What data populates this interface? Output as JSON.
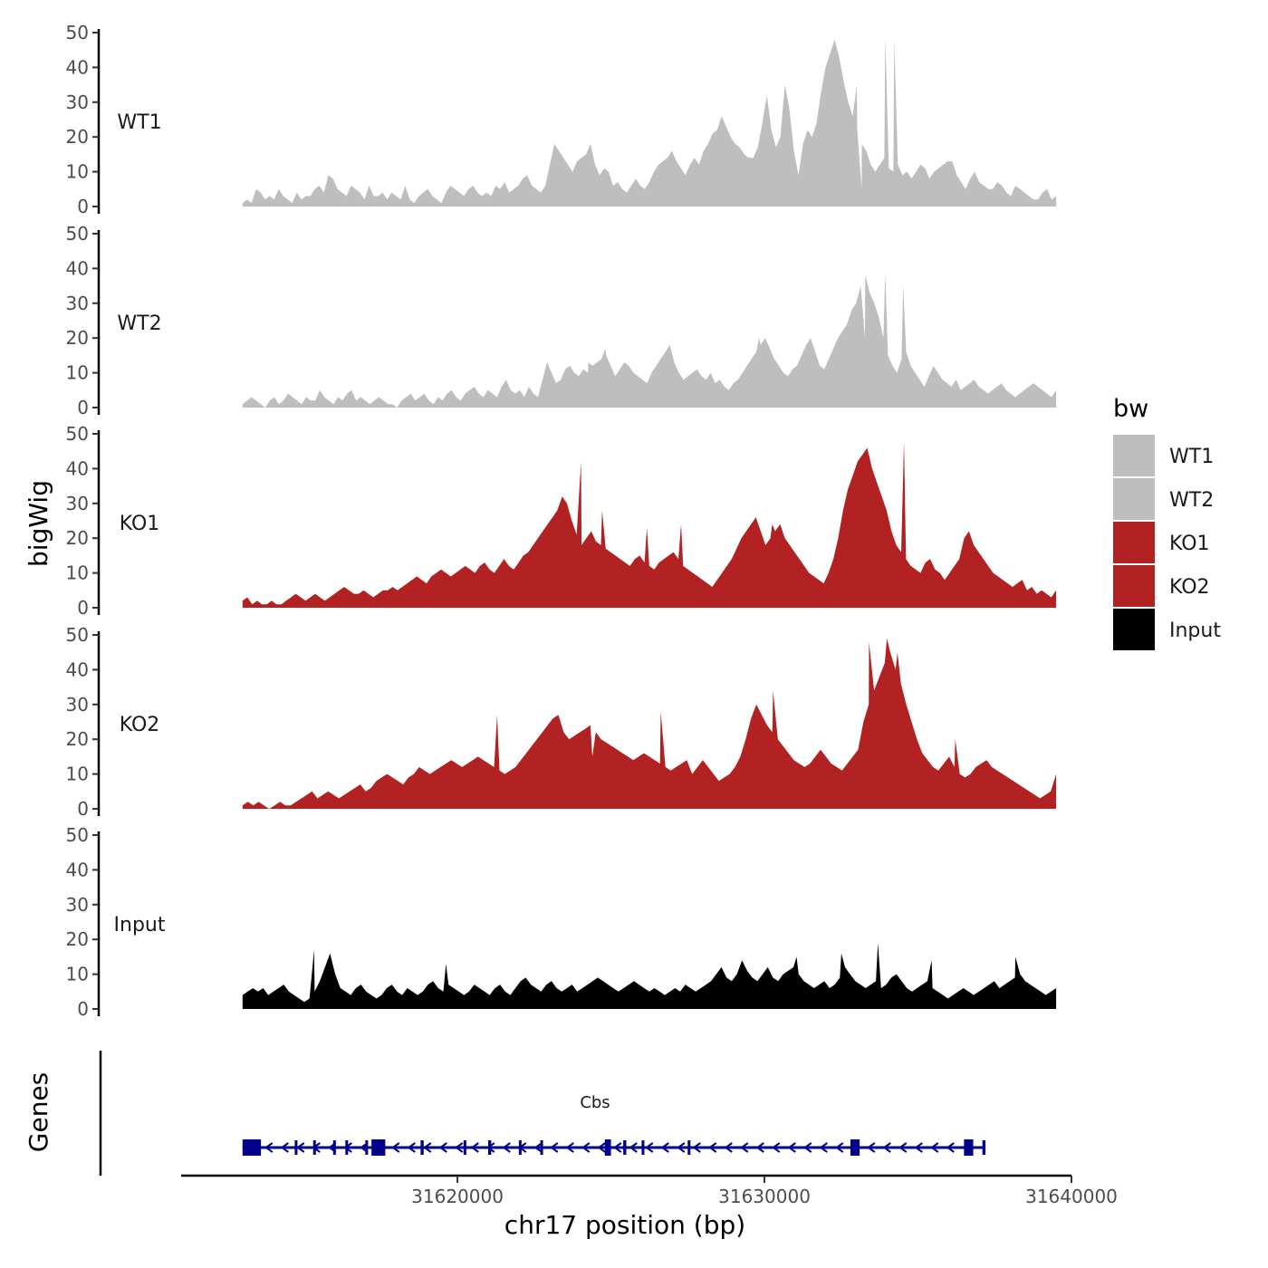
{
  "chart_data": {
    "type": "area",
    "title": "",
    "xlabel": "chr17 position (bp)",
    "ylabel": "bigWig",
    "xlim": [
      31611000,
      31640000
    ],
    "ylim": [
      0,
      50
    ],
    "yticks": [
      0,
      10,
      20,
      30,
      40,
      50
    ],
    "xticks": [
      31620000,
      31630000,
      31640000
    ],
    "grid": false,
    "legend": {
      "title": "bw",
      "placement": "right",
      "entries": [
        {
          "label": "WT1",
          "color": "#bebebe"
        },
        {
          "label": "WT2",
          "color": "#bebebe"
        },
        {
          "label": "KO1",
          "color": "#b22222"
        },
        {
          "label": "KO2",
          "color": "#b22222"
        },
        {
          "label": "Input",
          "color": "#000000"
        }
      ]
    },
    "x_range": [
      31613000,
      31639500
    ],
    "series": [
      {
        "name": "WT1",
        "label": "WT1",
        "color": "#bebebe",
        "values": [
          1,
          2,
          1,
          5,
          4,
          2,
          3,
          2,
          5,
          3,
          2,
          1,
          4,
          2,
          3,
          3,
          5,
          6,
          4,
          9,
          8,
          5,
          4,
          3,
          6,
          5,
          4,
          2,
          6,
          3,
          3,
          4,
          2,
          4,
          3,
          2,
          6,
          2,
          1,
          3,
          4,
          5,
          3,
          2,
          1,
          4,
          6,
          5,
          4,
          3,
          5,
          6,
          4,
          3,
          4,
          3,
          6,
          5,
          7,
          4,
          5,
          6,
          8,
          9,
          6,
          5,
          4,
          6,
          12,
          18,
          16,
          14,
          12,
          10,
          13,
          14,
          15,
          18,
          12,
          9,
          11,
          10,
          6,
          7,
          5,
          4,
          6,
          8,
          6,
          5,
          7,
          10,
          12,
          13,
          14,
          16,
          13,
          11,
          9,
          12,
          14,
          12,
          16,
          18,
          21,
          22,
          26,
          23,
          20,
          18,
          17,
          15,
          14,
          14,
          17,
          24,
          32,
          22,
          17,
          20,
          35,
          28,
          16,
          9,
          18,
          22,
          20,
          24,
          33,
          40,
          44,
          48,
          43,
          36,
          30,
          26,
          22,
          18,
          16,
          12,
          10,
          12,
          14,
          11,
          10,
          12,
          9,
          10,
          8,
          10,
          12,
          11,
          8,
          10,
          11,
          12,
          13,
          13,
          9,
          7,
          5,
          8,
          10,
          7,
          6,
          5,
          5,
          7,
          6,
          4,
          3,
          6,
          5,
          4,
          3,
          2,
          2,
          4,
          5,
          2,
          3
        ],
        "peaks": [
          [
            0.755,
            35
          ],
          [
            0.755,
            35
          ],
          [
            0.761,
            5
          ],
          [
            0.79,
            49
          ],
          [
            0.801,
            48
          ]
        ]
      },
      {
        "name": "WT2",
        "label": "WT2",
        "color": "#bebebe",
        "values": [
          1,
          2,
          3,
          2,
          1,
          0,
          2,
          3,
          1,
          2,
          4,
          3,
          2,
          1,
          3,
          2,
          2,
          5,
          3,
          2,
          1,
          3,
          2,
          4,
          5,
          2,
          3,
          2,
          1,
          2,
          3,
          2,
          1,
          1,
          0,
          2,
          3,
          4,
          2,
          3,
          4,
          2,
          1,
          3,
          2,
          4,
          5,
          3,
          2,
          4,
          5,
          6,
          4,
          3,
          5,
          4,
          3,
          6,
          8,
          5,
          4,
          5,
          3,
          6,
          4,
          3,
          8,
          13,
          10,
          7,
          8,
          11,
          12,
          10,
          9,
          11,
          10,
          12,
          13,
          14,
          15,
          12,
          9,
          11,
          13,
          12,
          10,
          9,
          8,
          7,
          10,
          12,
          14,
          16,
          18,
          13,
          10,
          8,
          9,
          10,
          11,
          9,
          8,
          10,
          7,
          8,
          6,
          5,
          7,
          8,
          10,
          12,
          14,
          16,
          18,
          20,
          17,
          14,
          12,
          10,
          9,
          11,
          12,
          15,
          18,
          20,
          16,
          12,
          11,
          14,
          17,
          20,
          22,
          24,
          28,
          30,
          35,
          38,
          33,
          30,
          26,
          20,
          15,
          12,
          10,
          14,
          16,
          12,
          10,
          8,
          6,
          9,
          12,
          10,
          8,
          7,
          6,
          8,
          5,
          6,
          7,
          8,
          6,
          5,
          4,
          5,
          6,
          7,
          5,
          4,
          3,
          4,
          5,
          6,
          7,
          6,
          5,
          4,
          3,
          5
        ],
        "peaks": [
          [
            0.425,
            13
          ],
          [
            0.446,
            17
          ],
          [
            0.635,
            20
          ],
          [
            0.765,
            20
          ],
          [
            0.79,
            39
          ],
          [
            0.812,
            35
          ]
        ]
      },
      {
        "name": "KO1",
        "label": "KO1",
        "color": "#b22222",
        "values": [
          2,
          3,
          1,
          2,
          1,
          1,
          2,
          1,
          1,
          2,
          3,
          4,
          3,
          2,
          3,
          4,
          3,
          2,
          3,
          4,
          5,
          6,
          5,
          4,
          4,
          5,
          4,
          3,
          4,
          5,
          5,
          6,
          5,
          6,
          7,
          8,
          9,
          8,
          7,
          9,
          10,
          11,
          10,
          9,
          10,
          11,
          12,
          11,
          10,
          12,
          13,
          11,
          10,
          12,
          14,
          12,
          11,
          13,
          15,
          16,
          18,
          20,
          22,
          24,
          26,
          28,
          32,
          30,
          25,
          21,
          18,
          20,
          22,
          19,
          18,
          17,
          16,
          15,
          14,
          13,
          12,
          14,
          15,
          13,
          12,
          11,
          13,
          14,
          15,
          16,
          14,
          12,
          11,
          10,
          9,
          8,
          7,
          6,
          8,
          10,
          12,
          14,
          17,
          20,
          22,
          24,
          26,
          22,
          18,
          20,
          22,
          24,
          20,
          18,
          16,
          14,
          12,
          10,
          9,
          8,
          7,
          10,
          14,
          20,
          28,
          34,
          38,
          42,
          44,
          46,
          40,
          36,
          32,
          28,
          22,
          18,
          16,
          14,
          12,
          11,
          10,
          13,
          14,
          11,
          10,
          8,
          10,
          12,
          14,
          20,
          22,
          18,
          16,
          14,
          12,
          10,
          9,
          8,
          7,
          6,
          7,
          8,
          5,
          6,
          4,
          5,
          4,
          3,
          5
        ],
        "peaks": [
          [
            0.416,
            42
          ],
          [
            0.442,
            28
          ],
          [
            0.497,
            23
          ],
          [
            0.539,
            24
          ],
          [
            0.651,
            24
          ],
          [
            0.813,
            48
          ]
        ]
      },
      {
        "name": "KO2",
        "label": "KO2",
        "color": "#b22222",
        "values": [
          1,
          2,
          1,
          2,
          1,
          0,
          1,
          2,
          1,
          1,
          2,
          3,
          4,
          5,
          3,
          4,
          5,
          4,
          3,
          4,
          5,
          6,
          7,
          5,
          6,
          8,
          9,
          10,
          9,
          8,
          7,
          9,
          10,
          12,
          11,
          10,
          11,
          12,
          13,
          14,
          13,
          12,
          13,
          14,
          15,
          14,
          13,
          12,
          11,
          10,
          11,
          12,
          14,
          16,
          18,
          20,
          22,
          24,
          26,
          27,
          22,
          20,
          21,
          22,
          23,
          24,
          22,
          20,
          19,
          18,
          17,
          16,
          15,
          14,
          15,
          16,
          15,
          14,
          13,
          12,
          11,
          12,
          13,
          14,
          10,
          12,
          14,
          12,
          10,
          8,
          9,
          10,
          12,
          15,
          20,
          26,
          30,
          27,
          24,
          22,
          20,
          18,
          16,
          14,
          13,
          12,
          13,
          15,
          17,
          15,
          13,
          12,
          11,
          13,
          15,
          17,
          25,
          30,
          34,
          38,
          42,
          45,
          40,
          36,
          30,
          25,
          20,
          16,
          14,
          12,
          11,
          13,
          15,
          12,
          10,
          9,
          10,
          12,
          13,
          14,
          12,
          11,
          10,
          9,
          8,
          7,
          6,
          5,
          4,
          3,
          4,
          5,
          10
        ],
        "peaks": [
          [
            0.313,
            27
          ],
          [
            0.43,
            15
          ],
          [
            0.514,
            28
          ],
          [
            0.652,
            34
          ],
          [
            0.77,
            48
          ],
          [
            0.792,
            49
          ],
          [
            0.805,
            45
          ],
          [
            0.876,
            20
          ]
        ]
      },
      {
        "name": "Input",
        "label": "Input",
        "color": "#000000",
        "values": [
          4,
          5,
          6,
          5,
          6,
          4,
          5,
          6,
          7,
          5,
          4,
          3,
          2,
          3,
          5,
          8,
          12,
          16,
          10,
          6,
          5,
          4,
          6,
          7,
          5,
          4,
          3,
          4,
          6,
          7,
          5,
          4,
          6,
          5,
          4,
          5,
          7,
          8,
          6,
          5,
          7,
          6,
          5,
          4,
          5,
          7,
          6,
          5,
          4,
          6,
          7,
          5,
          4,
          6,
          8,
          9,
          7,
          6,
          5,
          7,
          8,
          6,
          5,
          6,
          7,
          5,
          6,
          7,
          8,
          9,
          8,
          7,
          6,
          5,
          6,
          7,
          8,
          7,
          6,
          5,
          6,
          5,
          4,
          5,
          6,
          5,
          7,
          6,
          5,
          6,
          7,
          8,
          10,
          12,
          9,
          8,
          10,
          14,
          11,
          9,
          8,
          10,
          12,
          9,
          8,
          10,
          11,
          12,
          10,
          8,
          7,
          6,
          7,
          8,
          6,
          7,
          9,
          12,
          10,
          8,
          7,
          6,
          7,
          8,
          6,
          7,
          9,
          10,
          8,
          6,
          5,
          6,
          7,
          8,
          6,
          5,
          4,
          3,
          4,
          5,
          6,
          5,
          4,
          5,
          6,
          7,
          8,
          6,
          7,
          8,
          9,
          10,
          8,
          7,
          6,
          5,
          4,
          5,
          6
        ],
        "peaks": [
          [
            0.088,
            17
          ],
          [
            0.25,
            13
          ],
          [
            0.681,
            15
          ],
          [
            0.736,
            16
          ],
          [
            0.781,
            19
          ],
          [
            0.847,
            14
          ],
          [
            0.95,
            15
          ]
        ]
      }
    ],
    "genes": {
      "label": "Genes",
      "name": "Cbs",
      "color": "#00008b",
      "start": 31613000,
      "end": 31637200,
      "strand": "-",
      "exons": [
        {
          "start": 31613000,
          "end": 31613600
        },
        {
          "start": 31614700,
          "end": 31614750
        },
        {
          "start": 31615300,
          "end": 31615360
        },
        {
          "start": 31615950,
          "end": 31616000
        },
        {
          "start": 31616350,
          "end": 31616420
        },
        {
          "start": 31617000,
          "end": 31617080
        },
        {
          "start": 31617200,
          "end": 31617650
        },
        {
          "start": 31618800,
          "end": 31618900
        },
        {
          "start": 31620200,
          "end": 31620260
        },
        {
          "start": 31621000,
          "end": 31621100
        },
        {
          "start": 31622000,
          "end": 31622070
        },
        {
          "start": 31622700,
          "end": 31622760
        },
        {
          "start": 31624800,
          "end": 31625000
        },
        {
          "start": 31625400,
          "end": 31625500
        },
        {
          "start": 31626000,
          "end": 31626070
        },
        {
          "start": 31627500,
          "end": 31627580
        },
        {
          "start": 31632800,
          "end": 31633100
        },
        {
          "start": 31636500,
          "end": 31636800
        },
        {
          "start": 31637100,
          "end": 31637200
        }
      ]
    }
  }
}
